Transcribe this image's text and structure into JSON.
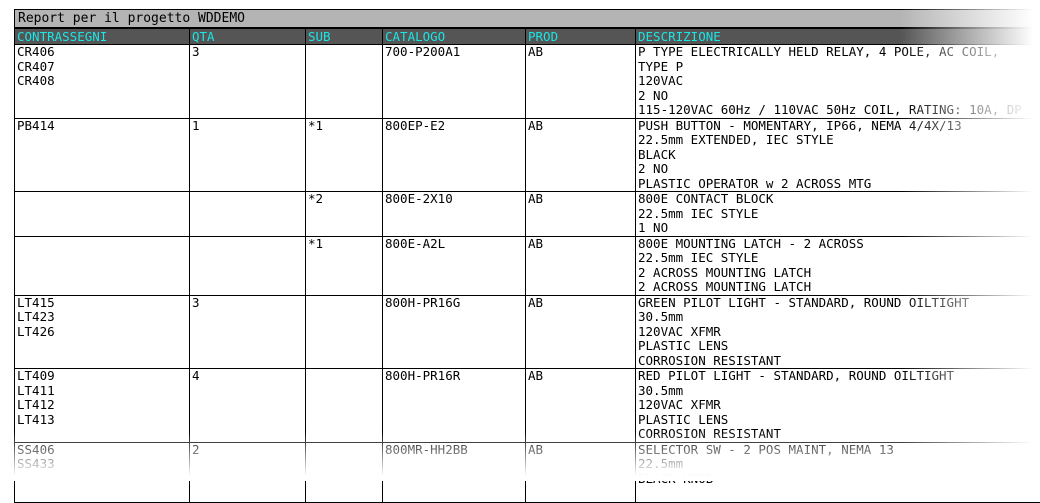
{
  "title": "Report per il progetto WDDEMO",
  "colors": {
    "header_bg": "#555555",
    "header_text": "#19e6e6",
    "title_bg": "#b4b4b4"
  },
  "columns": [
    "CONTRASSEGNI",
    "QTA",
    "SUB",
    "CATALOGO",
    "PROD",
    "DESCRIZIONE"
  ],
  "rows": [
    {
      "tags": "CR406\nCR407\nCR408",
      "qty": "3",
      "sub": "",
      "catalog": "700-P200A1",
      "prod": "AB",
      "desc": "P TYPE ELECTRICALLY HELD RELAY, 4 POLE, AC COIL,\nTYPE P\n120VAC\n2 NO\n115-120VAC 60Hz / 110VAC 50Hz COIL, RATING: 10A, DP"
    },
    {
      "tags": "PB414",
      "qty": "1",
      "sub": "*1",
      "catalog": "800EP-E2",
      "prod": "AB",
      "desc": "PUSH BUTTON - MOMENTARY, IP66, NEMA 4/4X/13\n22.5mm EXTENDED, IEC STYLE\nBLACK\n2 NO\nPLASTIC OPERATOR w 2 ACROSS MTG"
    },
    {
      "tags": "",
      "qty": "",
      "sub": "*2",
      "catalog": "800E-2X10",
      "prod": "AB",
      "desc": "800E CONTACT BLOCK\n22.5mm IEC STYLE\n1 NO"
    },
    {
      "tags": "",
      "qty": "",
      "sub": "*1",
      "catalog": "800E-A2L",
      "prod": "AB",
      "desc": "800E MOUNTING LATCH - 2 ACROSS\n22.5mm IEC STYLE\n2 ACROSS MOUNTING LATCH\n2 ACROSS MOUNTING LATCH"
    },
    {
      "tags": "LT415\nLT423\nLT426",
      "qty": "3",
      "sub": "",
      "catalog": "800H-PR16G",
      "prod": "AB",
      "desc": "GREEN PILOT LIGHT - STANDARD, ROUND OILTIGHT\n30.5mm\n120VAC XFMR\nPLASTIC LENS\nCORROSION RESISTANT"
    },
    {
      "tags": "LT409\nLT411\nLT412\nLT413",
      "qty": "4",
      "sub": "",
      "catalog": "800H-PR16R",
      "prod": "AB",
      "desc": "RED PILOT LIGHT - STANDARD, ROUND OILTIGHT\n30.5mm\n120VAC XFMR\nPLASTIC LENS\nCORROSION RESISTANT"
    },
    {
      "tags": "SS406\nSS433",
      "qty": "2",
      "sub": "",
      "catalog": "800MR-HH2BB",
      "prod": "AB",
      "desc": "SELECTOR SW - 2 POS MAINT, NEMA 13\n22.5mm\nBLACK KNOB"
    }
  ]
}
